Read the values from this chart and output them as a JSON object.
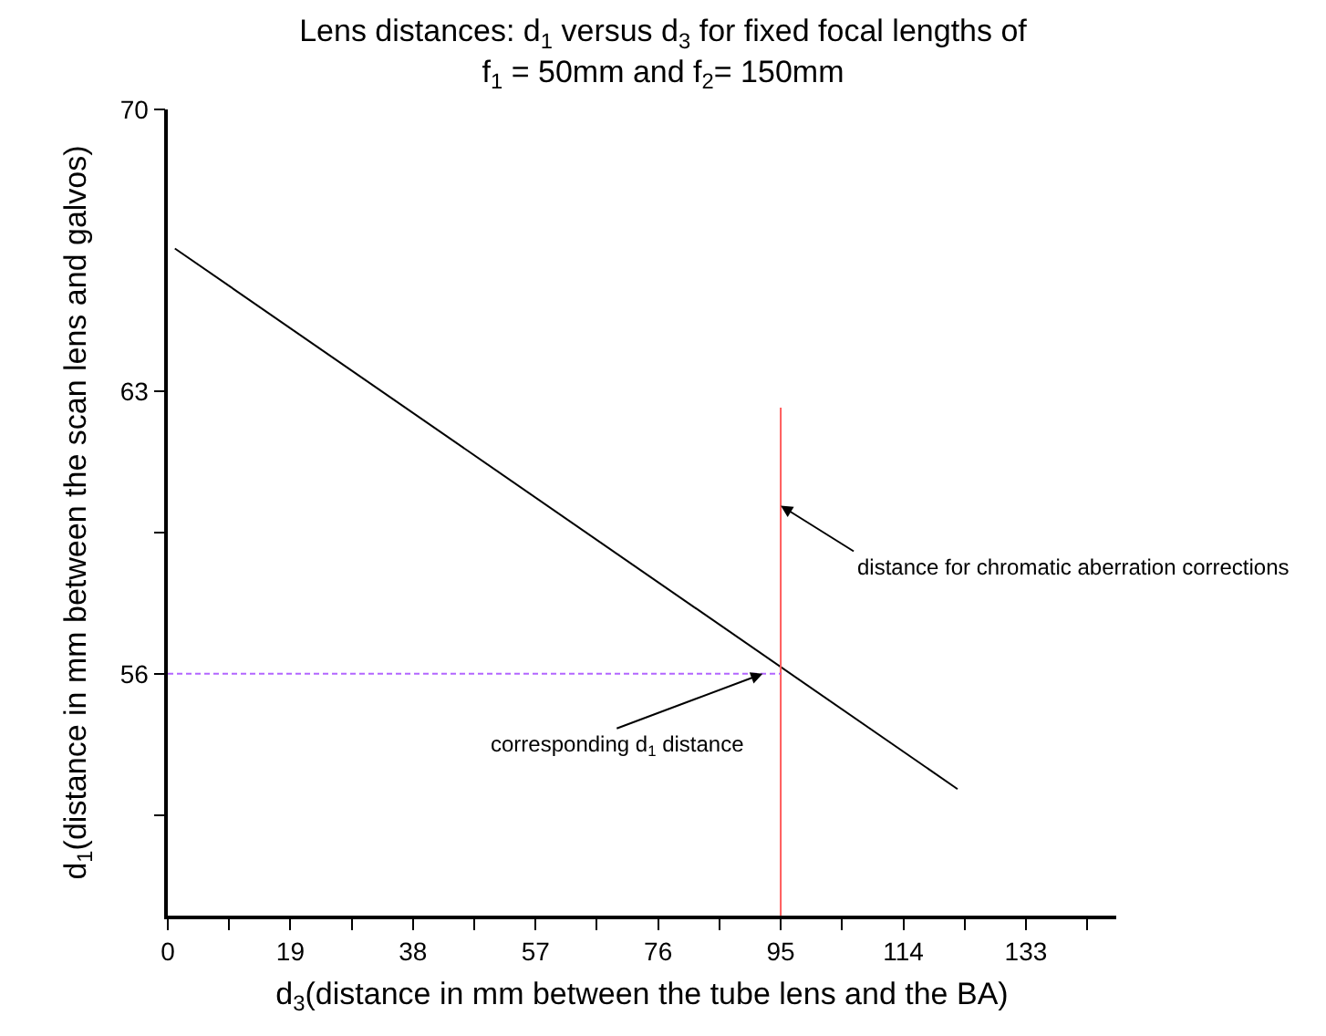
{
  "chart_data": {
    "type": "line",
    "title": "Lens distances: d$_{1}$ versus d$_{3}$ for fixed focal lengths of\nf$_{1}$ = 50mm and f$_{2}$= 150mm",
    "xlabel": "d$_{3}$(distance in mm between the tube lens and the BA)",
    "ylabel": "d$_{1}$(distance in mm between the scan lens and galvos)",
    "series": [
      {
        "color": "#000000",
        "x": [
          1.1,
          122.4
        ],
        "values": [
          66.55,
          53.14
        ],
        "line_style": "solid"
      },
      {
        "color": "#ff5a5a",
        "x": [
          95,
          95
        ],
        "values": [
          50,
          62.6
        ],
        "line_style": "solid"
      },
      {
        "color": "#b266ff",
        "x": [
          0,
          95
        ],
        "values": [
          56,
          56
        ],
        "line_style": "dotted"
      }
    ],
    "xlim": [
      0,
      147
    ],
    "ylim": [
      50,
      70
    ],
    "xticks": [
      0,
      {
        "value": 9.5,
        "label": null
      },
      19,
      {
        "value": 28.5,
        "label": null
      },
      38,
      {
        "value": 47.5,
        "label": null
      },
      57,
      {
        "value": 66.5,
        "label": null
      },
      76,
      {
        "value": 85.5,
        "label": null
      },
      95,
      {
        "value": 104.5,
        "label": null
      },
      114,
      {
        "value": 123.5,
        "label": null
      },
      133,
      {
        "value": 142.5,
        "label": null
      }
    ],
    "yticks": [
      {
        "value": 52.5,
        "label": null
      },
      56,
      {
        "value": 59.5,
        "label": null
      },
      63,
      70
    ],
    "annotations": [
      {
        "text": "distance for chromatic aberration corrections",
        "x": 95,
        "y": 60.17
      },
      {
        "text": "corresponding d$_{1}$ distance",
        "x": 92.2,
        "y": 56
      }
    ],
    "marker": "none"
  }
}
